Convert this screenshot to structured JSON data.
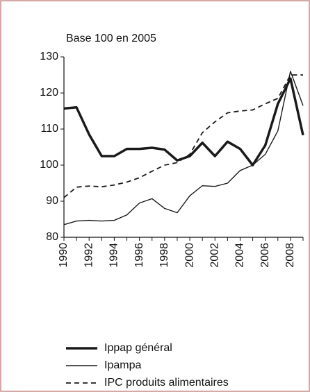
{
  "chart_data": {
    "type": "line",
    "subtitle": "Base 100 en 2005",
    "x": [
      1990,
      1991,
      1992,
      1993,
      1994,
      1995,
      1996,
      1997,
      1998,
      1999,
      2000,
      2001,
      2002,
      2003,
      2004,
      2005,
      2006,
      2007,
      2008,
      2009
    ],
    "xlim": [
      1990,
      2009
    ],
    "xticks": [
      1990,
      1992,
      1994,
      1996,
      1998,
      2000,
      2002,
      2004,
      2006,
      2008
    ],
    "ylim": [
      80,
      130
    ],
    "yticks": [
      80,
      90,
      100,
      110,
      120,
      130
    ],
    "series": [
      {
        "name": "Ippap général",
        "color": "#1a1a1a",
        "style": "thick",
        "values": [
          115.7,
          116,
          108.5,
          102.5,
          102.5,
          104.5,
          104.5,
          104.8,
          104.3,
          101.3,
          102.5,
          106.2,
          102.5,
          106.5,
          104.5,
          100,
          105.5,
          117,
          124,
          108.3
        ]
      },
      {
        "name": "Ipampa",
        "color": "#1a1a1a",
        "style": "thin",
        "values": [
          83.5,
          84.5,
          84.7,
          84.5,
          84.7,
          86.2,
          89.5,
          90.7,
          88,
          86.8,
          91.5,
          94.3,
          94.1,
          95,
          98.5,
          100,
          103,
          109.5,
          126,
          116.5
        ]
      },
      {
        "name": "IPC produits alimentaires",
        "color": "#1a1a1a",
        "style": "dashed",
        "values": [
          91,
          93.9,
          94.2,
          94,
          94.5,
          95.3,
          96.5,
          98.3,
          100,
          100.7,
          103,
          109,
          112,
          114.5,
          115,
          115.3,
          117,
          118.5,
          125,
          125
        ]
      }
    ]
  }
}
